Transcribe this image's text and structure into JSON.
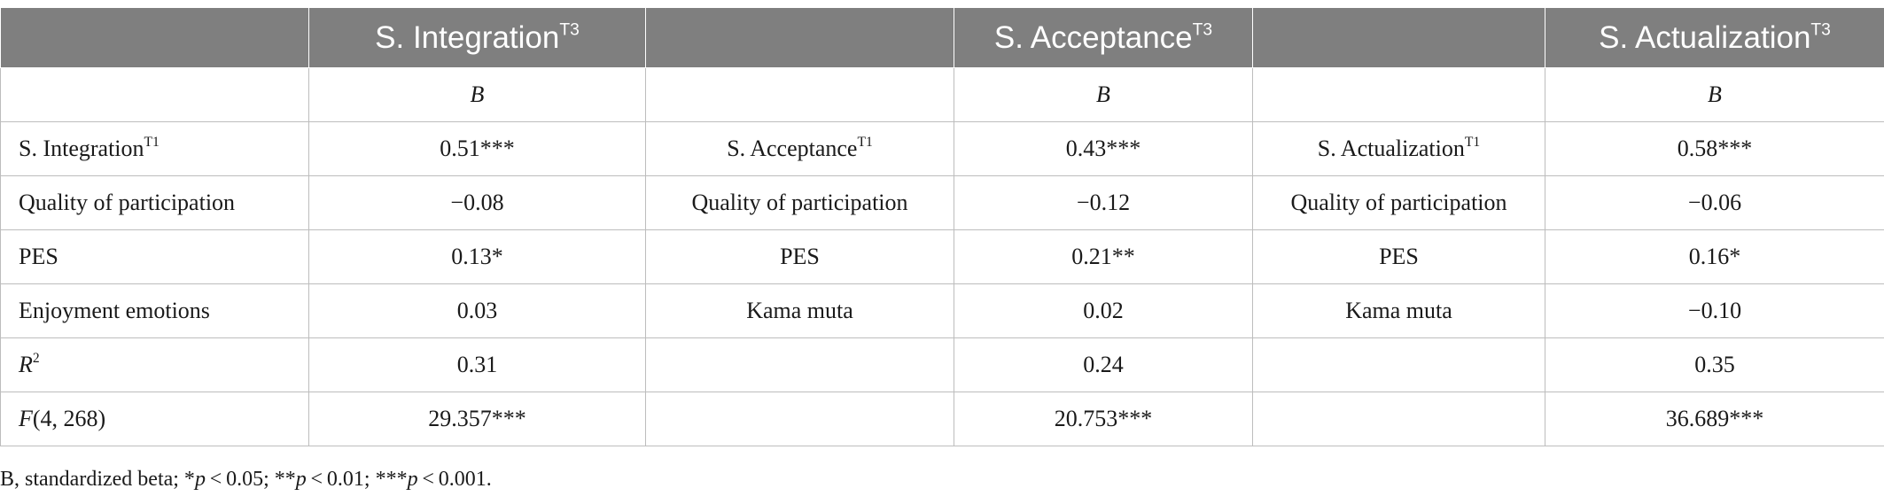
{
  "header": {
    "col1": {
      "label": "S. Integration",
      "sup": "T3"
    },
    "col2": {
      "label": "S. Acceptance",
      "sup": "T3"
    },
    "col3": {
      "label": "S. Actualization",
      "sup": "T3"
    }
  },
  "subheader": {
    "b1": "B",
    "b2": "B",
    "b3": "B"
  },
  "rows": [
    {
      "p1": "S. Integration",
      "p1_sup": "T1",
      "v1": "0.51***",
      "p2": "S. Acceptance",
      "p2_sup": "T1",
      "v2": "0.43***",
      "p3": "S. Actualization",
      "p3_sup": "T1",
      "v3": "0.58***"
    },
    {
      "p1": "Quality of participation",
      "v1": "−0.08",
      "p2": "Quality of participation",
      "v2": "−0.12",
      "p3": "Quality of participation",
      "v3": "−0.06"
    },
    {
      "p1": "PES",
      "v1": "0.13*",
      "p2": "PES",
      "v2": "0.21**",
      "p3": "PES",
      "v3": "0.16*"
    },
    {
      "p1": "Enjoyment emotions",
      "v1": "0.03",
      "p2": "Kama muta",
      "v2": "0.02",
      "p3": "Kama muta",
      "v3": "−0.10"
    },
    {
      "p1": "R",
      "p1_sup": "2",
      "v1": "0.31",
      "v2": "0.24",
      "v3": "0.35"
    },
    {
      "p1": "F",
      "p1_rest": "(4, 268)",
      "v1": "29.357***",
      "v2": "20.753***",
      "v3": "36.689***"
    }
  ],
  "note": {
    "lead": "B, standardized beta; *",
    "p": "p",
    "part1": " < 0.05; **",
    "part2": " < 0.01; ***",
    "part3": " < 0.001."
  }
}
